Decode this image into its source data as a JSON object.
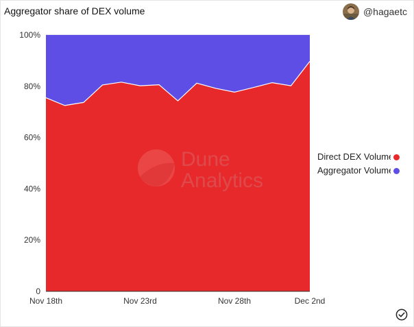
{
  "header": {
    "title": "Aggregator share of DEX volume",
    "user_handle": "@hagaetc"
  },
  "watermark": {
    "line1": "Dune",
    "line2": "Analytics"
  },
  "colors": {
    "direct": "#e8292b",
    "aggregator": "#5f4ee6",
    "grid": "#dddddd",
    "axis": "#333333"
  },
  "chart_data": {
    "type": "area",
    "stacked": true,
    "percent": true,
    "x": [
      "Nov 18th",
      "Nov 19th",
      "Nov 20th",
      "Nov 21st",
      "Nov 22nd",
      "Nov 23rd",
      "Nov 24th",
      "Nov 25th",
      "Nov 26th",
      "Nov 27th",
      "Nov 28th",
      "Nov 29th",
      "Nov 30th",
      "Dec 1st",
      "Dec 2nd"
    ],
    "x_tick_labels": [
      "Nov 18th",
      "Nov 23rd",
      "Nov 28th",
      "Dec 2nd"
    ],
    "y_tick_labels": [
      "0",
      "20%",
      "40%",
      "60%",
      "80%",
      "100%"
    ],
    "ylim": [
      0,
      100
    ],
    "series": [
      {
        "name": "Direct DEX Volume",
        "values": [
          75.5,
          72.5,
          73.7,
          80.5,
          81.6,
          80.2,
          80.6,
          74.3,
          81.2,
          79.2,
          77.7,
          79.5,
          81.4,
          80.2,
          89.7
        ]
      },
      {
        "name": "Aggregator Volume",
        "values": [
          24.5,
          27.5,
          26.3,
          19.5,
          18.4,
          19.8,
          19.4,
          25.7,
          18.8,
          20.8,
          22.3,
          20.5,
          18.6,
          19.8,
          10.3
        ]
      }
    ],
    "legend_position": "right",
    "grid": true
  }
}
